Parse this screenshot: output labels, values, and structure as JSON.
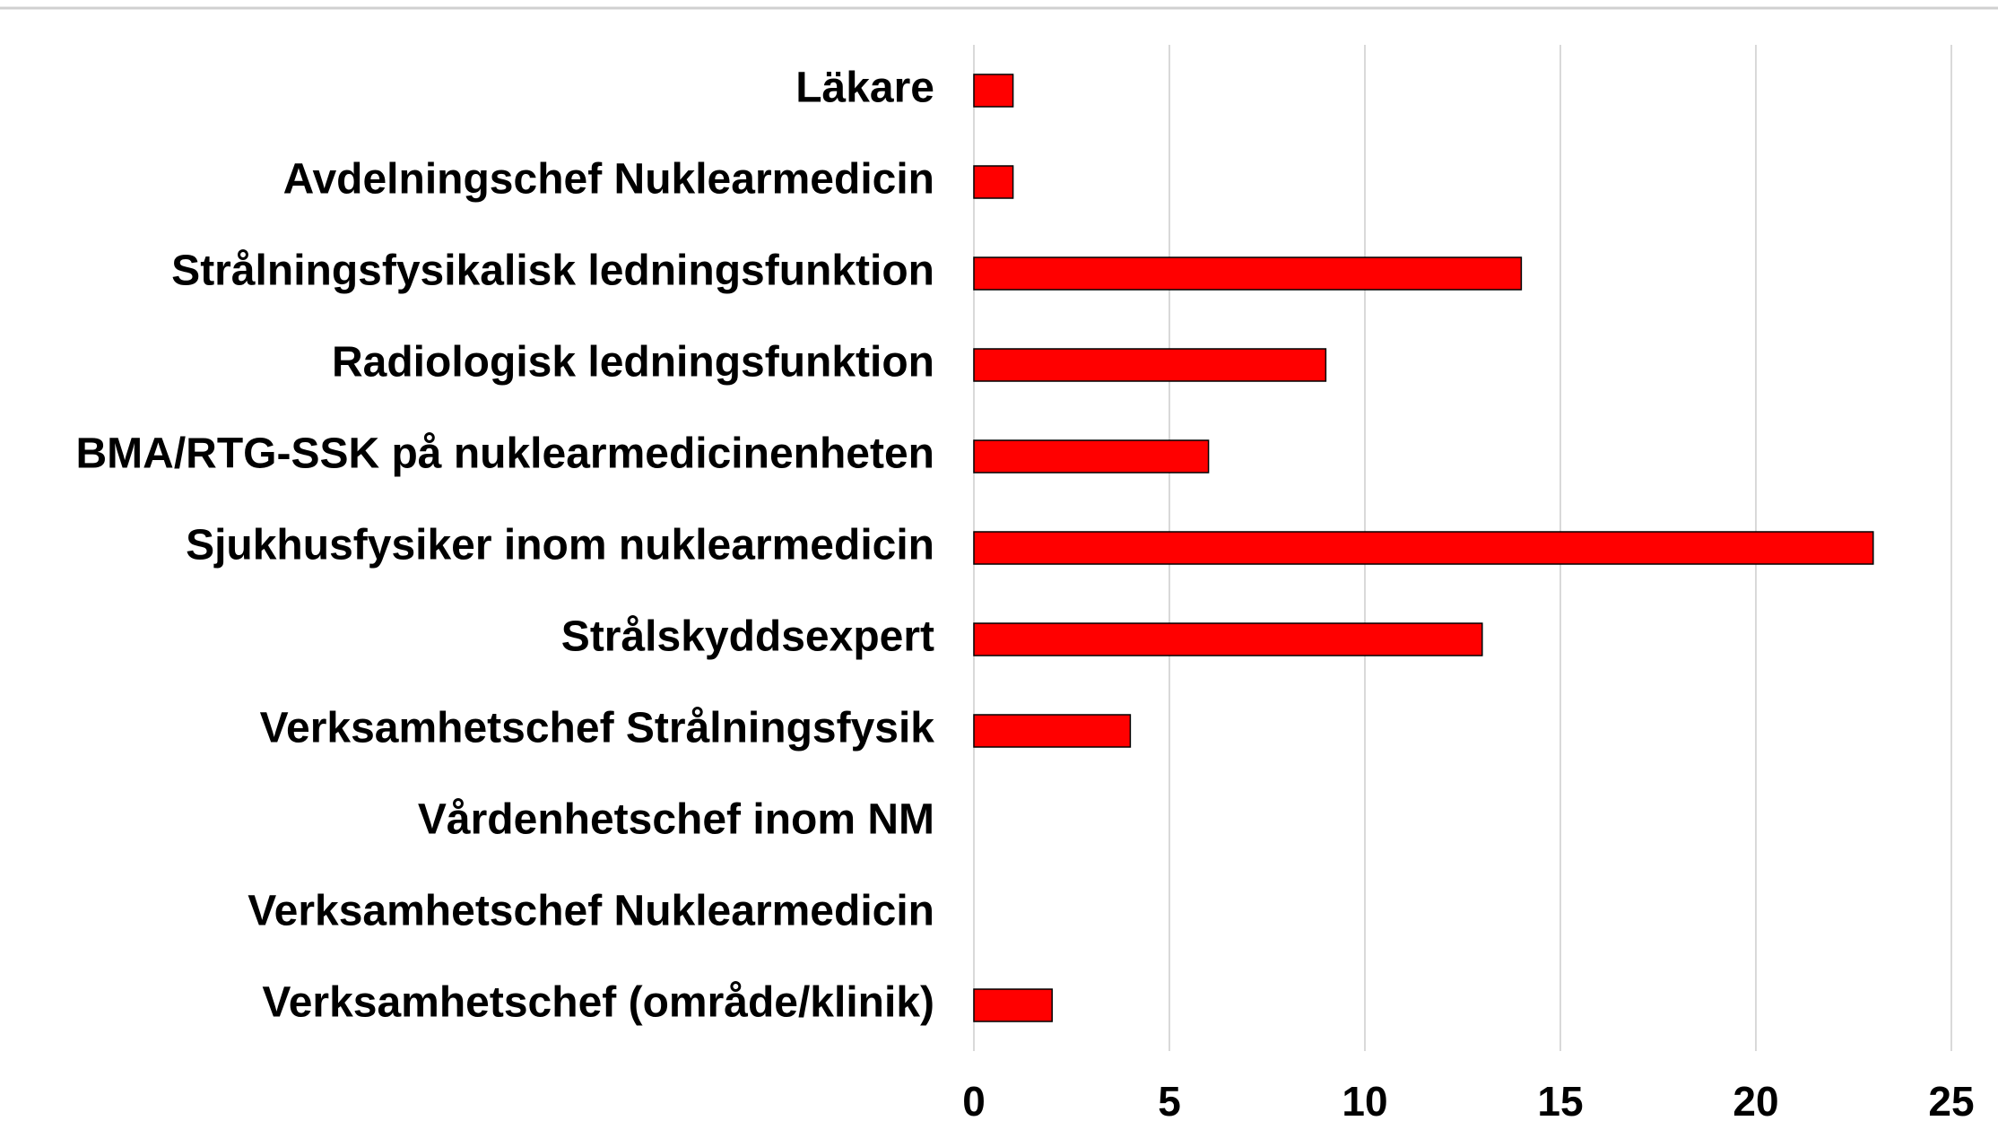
{
  "chart_data": {
    "type": "barh",
    "categories": [
      "Läkare",
      "Avdelningschef Nuklearmedicin",
      "Strålningsfysikalisk ledningsfunktion",
      "Radiologisk ledningsfunktion",
      "BMA/RTG-SSK på nuklearmedicinenheten",
      "Sjukhusfysiker inom nuklearmedicin",
      "Strålskyddsexpert",
      "Verksamhetschef Strålningsfysik",
      "Vårdenhetschef inom NM",
      "Verksamhetschef Nuklearmedicin",
      "Verksamhetschef (område/klinik)"
    ],
    "values": [
      1,
      1,
      14,
      9,
      6,
      23,
      13,
      4,
      0,
      0,
      2
    ],
    "color": "#ff0000",
    "xlim": [
      0,
      25
    ],
    "xticks": [
      0,
      5,
      10,
      15,
      20,
      25
    ],
    "grid": true
  }
}
